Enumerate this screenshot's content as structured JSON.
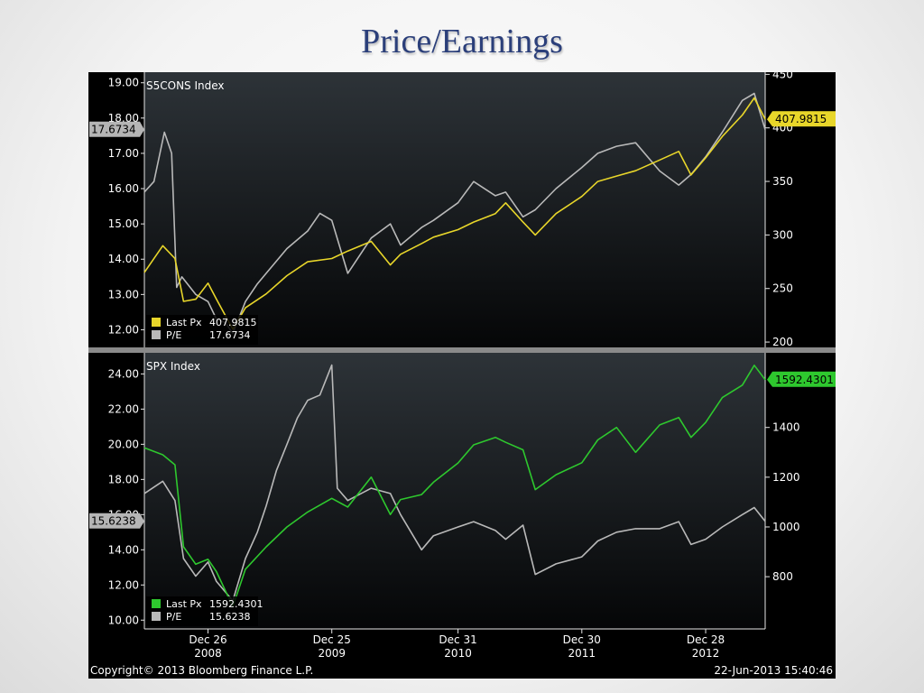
{
  "slide_title": "Price/Earnings",
  "colors": {
    "sector_price": "#e8d62a",
    "spx_price": "#2ec82e",
    "pe_line": "#b9b9b9",
    "slide_title": "#2b3f7a"
  },
  "footer": {
    "copyright": "Copyright© 2013 Bloomberg Finance L.P.",
    "timestamp": "22-Jun-2013 15:40:46"
  },
  "x_axis": {
    "ticks": [
      {
        "date": "2008-12-26",
        "line1": "Dec 26",
        "line2": "2008"
      },
      {
        "date": "2009-12-25",
        "line1": "Dec 25",
        "line2": "2009"
      },
      {
        "date": "2010-12-31",
        "line1": "Dec 31",
        "line2": "2010"
      },
      {
        "date": "2011-12-30",
        "line1": "Dec 30",
        "line2": "2011"
      },
      {
        "date": "2012-12-28",
        "line1": "Dec 28",
        "line2": "2012"
      }
    ]
  },
  "chart_data": [
    {
      "type": "line",
      "title": "S5CONS Index",
      "left_axis": {
        "ylim": [
          11.5,
          19.3
        ],
        "ticks": [
          "19.00",
          "18.00",
          "17.00",
          "16.00",
          "15.00",
          "14.00",
          "13.00",
          "12.00"
        ]
      },
      "right_axis": {
        "ylim": [
          195,
          452
        ],
        "ticks": [
          "450",
          "400",
          "350",
          "300",
          "250",
          "200"
        ]
      },
      "grid": false,
      "legend": {
        "position": "bottom-left",
        "entries": [
          {
            "label": "Last Px",
            "value": "407.9815",
            "color": "#e8d62a"
          },
          {
            "label": "P/E",
            "value": "17.6734",
            "color": "#b9b9b9"
          }
        ]
      },
      "last_value_tags": {
        "left": "17.6734",
        "right": "407.9815"
      },
      "series": [
        {
          "name": "Last Px",
          "axis": "right",
          "x": [
            "2008-06-22",
            "2008-08-15",
            "2008-09-20",
            "2008-10-15",
            "2008-11-20",
            "2008-12-26",
            "2009-01-20",
            "2009-03-09",
            "2009-04-15",
            "2009-06-15",
            "2009-08-15",
            "2009-10-15",
            "2009-12-25",
            "2010-02-10",
            "2010-04-20",
            "2010-06-15",
            "2010-07-15",
            "2010-09-15",
            "2010-10-20",
            "2010-12-31",
            "2011-02-15",
            "2011-04-20",
            "2011-05-20",
            "2011-07-10",
            "2011-08-15",
            "2011-10-15",
            "2011-12-30",
            "2012-02-15",
            "2012-04-10",
            "2012-06-05",
            "2012-08-15",
            "2012-10-10",
            "2012-11-15",
            "2012-12-28",
            "2013-02-15",
            "2013-04-15",
            "2013-05-20",
            "2013-06-21"
          ],
          "y": [
            265,
            290,
            278,
            238,
            240,
            255,
            240,
            212,
            232,
            245,
            262,
            275,
            278,
            285,
            294,
            272,
            282,
            292,
            298,
            305,
            312,
            320,
            330,
            312,
            300,
            320,
            336,
            350,
            355,
            360,
            370,
            378,
            356,
            372,
            392,
            412,
            428,
            408
          ]
        },
        {
          "name": "P/E",
          "axis": "left",
          "x": [
            "2008-06-22",
            "2008-07-20",
            "2008-08-20",
            "2008-09-10",
            "2008-09-25",
            "2008-10-10",
            "2008-11-20",
            "2008-12-26",
            "2009-01-20",
            "2009-02-15",
            "2009-03-09",
            "2009-04-15",
            "2009-05-20",
            "2009-06-15",
            "2009-08-15",
            "2009-10-15",
            "2009-11-20",
            "2009-12-25",
            "2010-02-10",
            "2010-04-20",
            "2010-06-15",
            "2010-07-15",
            "2010-09-15",
            "2010-10-20",
            "2010-12-31",
            "2011-02-15",
            "2011-04-20",
            "2011-05-20",
            "2011-07-10",
            "2011-08-15",
            "2011-10-15",
            "2011-12-30",
            "2012-02-15",
            "2012-04-10",
            "2012-06-05",
            "2012-08-15",
            "2012-10-10",
            "2012-11-15",
            "2012-12-28",
            "2013-02-15",
            "2013-04-15",
            "2013-05-20",
            "2013-06-21"
          ],
          "y": [
            15.9,
            16.2,
            17.6,
            17.0,
            13.2,
            13.5,
            13.0,
            12.8,
            12.3,
            12.2,
            11.9,
            12.8,
            13.3,
            13.6,
            14.3,
            14.8,
            15.3,
            15.1,
            13.6,
            14.6,
            15.0,
            14.4,
            14.9,
            15.1,
            15.6,
            16.2,
            15.8,
            15.9,
            15.2,
            15.4,
            16.0,
            16.6,
            17.0,
            17.2,
            17.3,
            16.5,
            16.1,
            16.4,
            16.9,
            17.6,
            18.5,
            18.7,
            17.67
          ]
        }
      ]
    },
    {
      "type": "line",
      "title": "SPX Index",
      "left_axis": {
        "ylim": [
          9.5,
          25.2
        ],
        "ticks": [
          "24.00",
          "22.00",
          "20.00",
          "18.00",
          "16.00",
          "14.00",
          "12.00",
          "10.00"
        ]
      },
      "right_axis": {
        "ylim": [
          590,
          1700
        ],
        "ticks": [
          "1400",
          "1200",
          "1000",
          "800"
        ]
      },
      "grid": false,
      "legend": {
        "position": "bottom-left",
        "entries": [
          {
            "label": "Last Px",
            "value": "1592.4301",
            "color": "#2ec82e"
          },
          {
            "label": "P/E",
            "value": "15.6238",
            "color": "#b9b9b9"
          }
        ]
      },
      "last_value_tags": {
        "left": "15.6238",
        "right": "1592.4301"
      },
      "series": [
        {
          "name": "Last Px",
          "axis": "right",
          "x": [
            "2008-06-22",
            "2008-08-15",
            "2008-09-20",
            "2008-10-15",
            "2008-11-20",
            "2008-12-26",
            "2009-01-20",
            "2009-03-09",
            "2009-04-15",
            "2009-06-15",
            "2009-08-15",
            "2009-10-15",
            "2009-12-25",
            "2010-02-10",
            "2010-04-20",
            "2010-06-15",
            "2010-07-15",
            "2010-09-15",
            "2010-10-20",
            "2010-12-31",
            "2011-02-15",
            "2011-04-20",
            "2011-05-20",
            "2011-07-10",
            "2011-08-15",
            "2011-10-15",
            "2011-12-30",
            "2012-02-15",
            "2012-04-10",
            "2012-06-05",
            "2012-08-15",
            "2012-10-10",
            "2012-11-15",
            "2012-12-28",
            "2013-02-15",
            "2013-04-15",
            "2013-05-20",
            "2013-06-21"
          ],
          "y": [
            1318,
            1290,
            1250,
            920,
            850,
            870,
            820,
            680,
            830,
            920,
            1000,
            1060,
            1115,
            1080,
            1200,
            1050,
            1110,
            1130,
            1180,
            1257,
            1330,
            1360,
            1340,
            1310,
            1150,
            1210,
            1258,
            1350,
            1400,
            1300,
            1410,
            1440,
            1360,
            1420,
            1520,
            1570,
            1650,
            1592
          ]
        },
        {
          "name": "P/E",
          "axis": "left",
          "x": [
            "2008-06-22",
            "2008-08-15",
            "2008-09-20",
            "2008-10-15",
            "2008-11-20",
            "2008-12-26",
            "2009-01-20",
            "2009-03-09",
            "2009-04-15",
            "2009-05-20",
            "2009-06-15",
            "2009-07-15",
            "2009-08-15",
            "2009-09-15",
            "2009-10-15",
            "2009-11-20",
            "2009-12-25",
            "2010-01-10",
            "2010-02-10",
            "2010-04-20",
            "2010-06-15",
            "2010-07-15",
            "2010-09-15",
            "2010-10-20",
            "2010-12-31",
            "2011-02-15",
            "2011-04-20",
            "2011-05-20",
            "2011-07-10",
            "2011-08-15",
            "2011-10-15",
            "2011-12-30",
            "2012-02-15",
            "2012-04-10",
            "2012-06-05",
            "2012-08-15",
            "2012-10-10",
            "2012-11-15",
            "2012-12-28",
            "2013-02-15",
            "2013-04-15",
            "2013-05-20",
            "2013-06-21"
          ],
          "y": [
            17.2,
            17.9,
            16.8,
            13.5,
            12.5,
            13.3,
            12.2,
            11.1,
            13.5,
            15.0,
            16.5,
            18.5,
            20.0,
            21.5,
            22.5,
            22.8,
            24.5,
            17.5,
            16.8,
            17.5,
            17.2,
            16.0,
            14.0,
            14.8,
            15.3,
            15.6,
            15.1,
            14.6,
            15.4,
            12.6,
            13.2,
            13.6,
            14.5,
            15.0,
            15.2,
            15.2,
            15.6,
            14.3,
            14.6,
            15.3,
            16.0,
            16.4,
            15.62
          ]
        }
      ]
    }
  ]
}
